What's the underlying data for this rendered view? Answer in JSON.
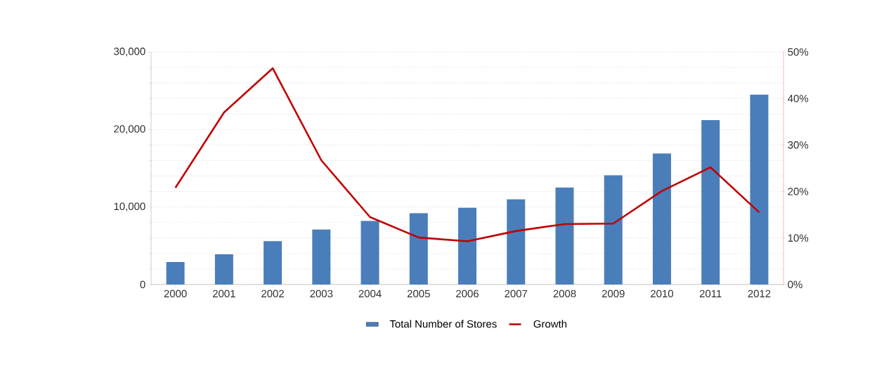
{
  "chart_data": {
    "type": "bar",
    "categories": [
      "2000",
      "2001",
      "2002",
      "2003",
      "2004",
      "2005",
      "2006",
      "2007",
      "2008",
      "2009",
      "2010",
      "2011",
      "2012"
    ],
    "series": [
      {
        "name": "Total Number of Stores",
        "color": "#4a7ebb",
        "values": [
          2900,
          3900,
          5600,
          7100,
          8200,
          9200,
          9900,
          11000,
          12500,
          14100,
          16900,
          21200,
          24500
        ]
      },
      {
        "name": "Growth",
        "type": "line",
        "axis": "y2",
        "color": "#c00000",
        "values": [
          20.8,
          37,
          46.5,
          26.7,
          14.5,
          10.1,
          9.3,
          11.5,
          13,
          13.1,
          20.1,
          25.2,
          15.5
        ]
      }
    ],
    "ylim": [
      0,
      30000
    ],
    "yticks": [
      {
        "value": 0,
        "label": "0"
      },
      {
        "value": 10000,
        "label": "10,000"
      },
      {
        "value": 20000,
        "label": "20,000"
      },
      {
        "value": 30000,
        "label": "30,000"
      }
    ],
    "y2lim": [
      0,
      50
    ],
    "y2ticks": [
      {
        "value": 0,
        "label": "0%"
      },
      {
        "value": 10,
        "label": "10%"
      },
      {
        "value": 20,
        "label": "20%"
      },
      {
        "value": 30,
        "label": "30%"
      },
      {
        "value": 40,
        "label": "40%"
      },
      {
        "value": 50,
        "label": "50%"
      }
    ],
    "grid": "y",
    "legend": "bottom"
  }
}
